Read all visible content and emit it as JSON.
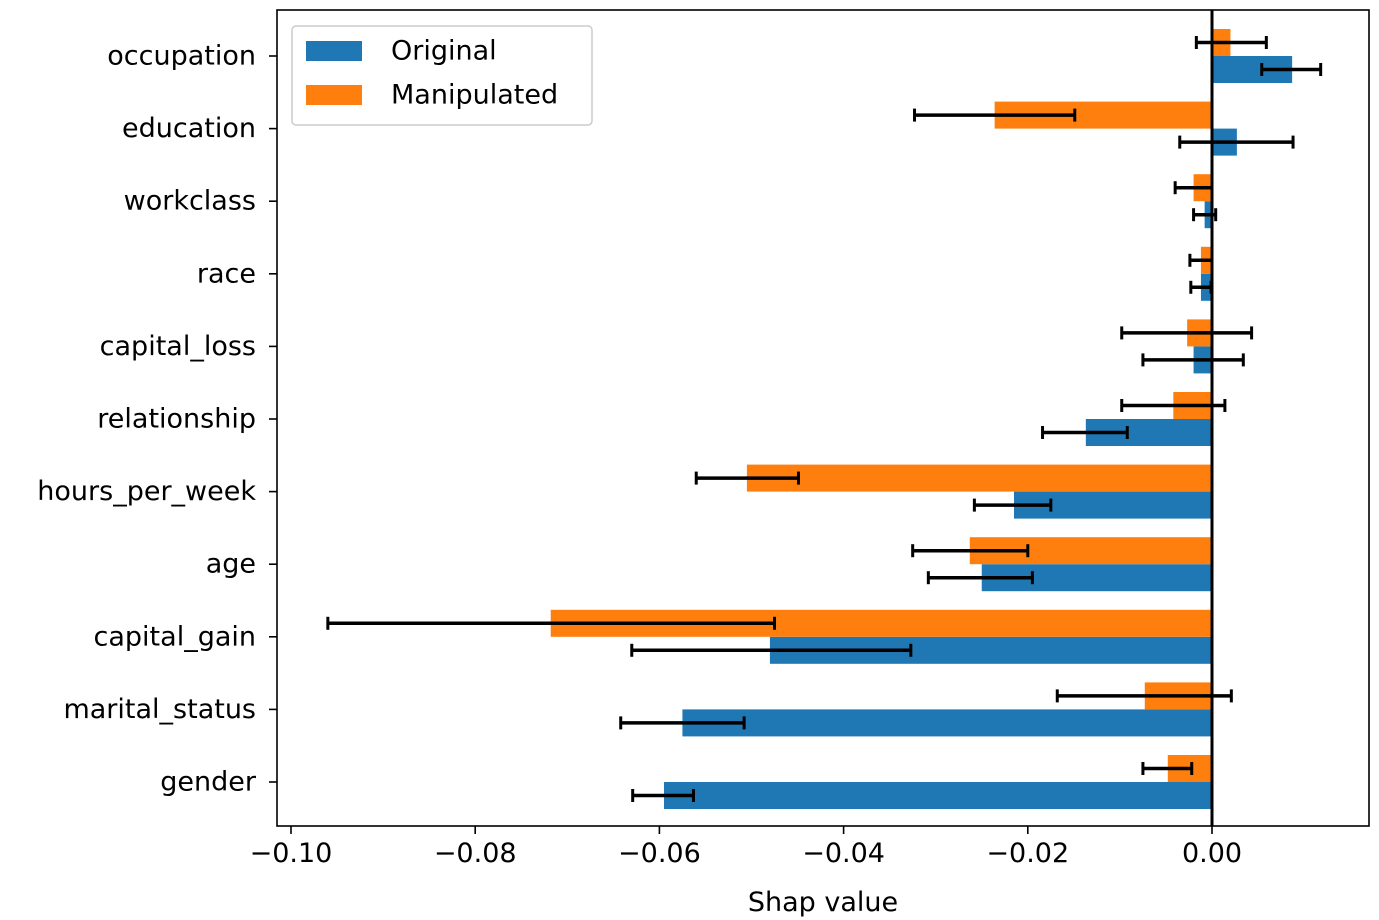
{
  "chart_data": {
    "type": "bar",
    "orientation": "horizontal",
    "xlabel": "Shap value",
    "ylabel": "",
    "xlim": [
      -0.1015,
      0.017
    ],
    "xticks": [
      -0.1,
      -0.08,
      -0.06,
      -0.04,
      -0.02,
      0.0
    ],
    "xtick_labels": [
      "−0.10",
      "−0.08",
      "−0.06",
      "−0.04",
      "−0.02",
      "0.00"
    ],
    "categories": [
      "occupation",
      "education",
      "workclass",
      "race",
      "capital_loss",
      "relationship",
      "hours_per_week",
      "age",
      "capital_gain",
      "marital_status",
      "gender"
    ],
    "series": [
      {
        "name": "Original",
        "color": "#1f77b4",
        "values": [
          0.0087,
          0.0027,
          -0.0008,
          -0.0012,
          -0.002,
          -0.0137,
          -0.0215,
          -0.025,
          -0.048,
          -0.0575,
          -0.0595
        ],
        "err_low": [
          0.0054,
          -0.0035,
          -0.002,
          -0.0023,
          -0.0075,
          -0.0184,
          -0.0258,
          -0.0308,
          -0.063,
          -0.0642,
          -0.0629
        ],
        "err_high": [
          0.0118,
          0.0088,
          0.0004,
          -0.0001,
          0.0034,
          -0.0092,
          -0.0175,
          -0.0195,
          -0.0327,
          -0.0508,
          -0.0563
        ]
      },
      {
        "name": "Manipulated",
        "color": "#ff7f0e",
        "values": [
          0.002,
          -0.0236,
          -0.002,
          -0.0012,
          -0.0027,
          -0.0042,
          -0.0505,
          -0.0263,
          -0.0718,
          -0.0073,
          -0.0048
        ],
        "err_low": [
          -0.0017,
          -0.0323,
          -0.004,
          -0.0024,
          -0.0098,
          -0.0098,
          -0.056,
          -0.0325,
          -0.096,
          -0.0168,
          -0.0075
        ],
        "err_high": [
          0.0059,
          -0.0149,
          0.0,
          0.0,
          0.0043,
          0.0014,
          -0.0449,
          -0.02,
          -0.0475,
          0.0021,
          -0.0022
        ]
      }
    ],
    "zero_line": true,
    "legend_position": "top-left",
    "grid": false
  }
}
